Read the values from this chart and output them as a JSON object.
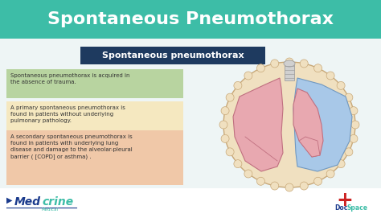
{
  "bg_color": "#eef5f5",
  "header_color": "#3dbda7",
  "header_text": "Spontaneous Pneumothorax",
  "header_text_color": "#ffffff",
  "subtitle_box_color": "#1e3a5f",
  "subtitle_text": "Spontaneous pneumothorax",
  "subtitle_text_color": "#ffffff",
  "boxes": [
    {
      "text": "Spontaneous pneumothorax is acquired in\nthe absence of trauma.",
      "bg_color": "#b8d4a0",
      "text_color": "#333333"
    },
    {
      "text": "A primary spontaneous pneumothorax is\nfound in patients without underlying\npulmonary pathology.",
      "bg_color": "#f5e8c0",
      "text_color": "#333333"
    },
    {
      "text": "A secondary spontaneous pneumothorax is\nfound in patients with underlying lung\ndisease and damage to the alveolar-pleural\nbarrier ( [COPD] or asthma) .",
      "bg_color": "#f0c8a8",
      "text_color": "#333333"
    }
  ],
  "medcrine_med_color": "#1a3a8c",
  "medcrine_crine_color": "#3dbda7",
  "medcrine_sub_color": "#3dbda7",
  "docspace_doc_color": "#1a3a8c",
  "docspace_space_color": "#3dbda7",
  "cross_color": "#cc2222",
  "lung_outer_color": "#f0e0c0",
  "lung_outer_edge": "#c8a878",
  "lung_left_color": "#e8a8b0",
  "lung_left_edge": "#c07080",
  "lung_right_color": "#e8a8b0",
  "lung_right_edge": "#c07080",
  "pneumo_color": "#a8c8e8",
  "pneumo_edge": "#7098c0",
  "trachea_color": "#d0d0d0",
  "trachea_edge": "#a0a0a0"
}
